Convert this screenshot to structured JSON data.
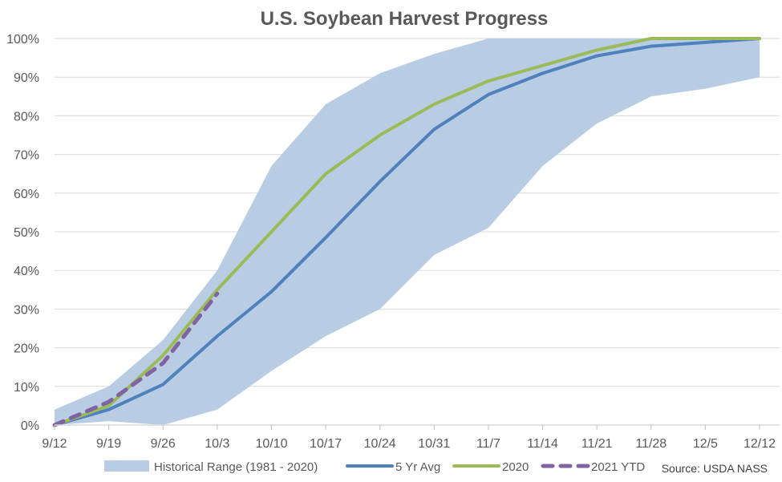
{
  "chart_data": {
    "type": "line",
    "title": "U.S. Soybean Harvest Progress",
    "x_labels": [
      "9/12",
      "9/19",
      "9/26",
      "10/3",
      "10/10",
      "10/17",
      "10/24",
      "10/31",
      "11/7",
      "11/14",
      "11/21",
      "11/28",
      "12/5",
      "12/12"
    ],
    "y_ticks": [
      "0%",
      "10%",
      "20%",
      "30%",
      "40%",
      "50%",
      "60%",
      "70%",
      "80%",
      "90%",
      "100%"
    ],
    "ylim": [
      0,
      100
    ],
    "grid": "horizontal",
    "legend_position": "bottom",
    "range": {
      "name": "Historical Range (1981 - 2020)",
      "color": "#b8cce4",
      "low": [
        0,
        1,
        0,
        4,
        14,
        23,
        30,
        44,
        51,
        67,
        78,
        85,
        87,
        90
      ],
      "high": [
        4,
        10,
        22,
        40,
        67,
        83,
        91,
        96,
        100,
        100,
        100,
        100,
        100,
        100
      ]
    },
    "series": [
      {
        "name": "5 Yr Avg",
        "color": "#4f81bd",
        "dashed": false,
        "values": [
          0,
          4,
          10.5,
          23,
          34.5,
          48.5,
          63,
          76.5,
          85.5,
          91,
          95.5,
          98,
          99,
          100
        ]
      },
      {
        "name": "2020",
        "color": "#9bbb59",
        "dashed": false,
        "values": [
          0,
          5,
          18,
          35,
          50,
          65,
          75,
          83,
          89,
          93,
          97,
          100,
          100,
          100
        ]
      },
      {
        "name": "2021 YTD",
        "color": "#8064a2",
        "dashed": true,
        "values": [
          0,
          6,
          16,
          34
        ]
      }
    ],
    "source": "Source: USDA NASS"
  }
}
